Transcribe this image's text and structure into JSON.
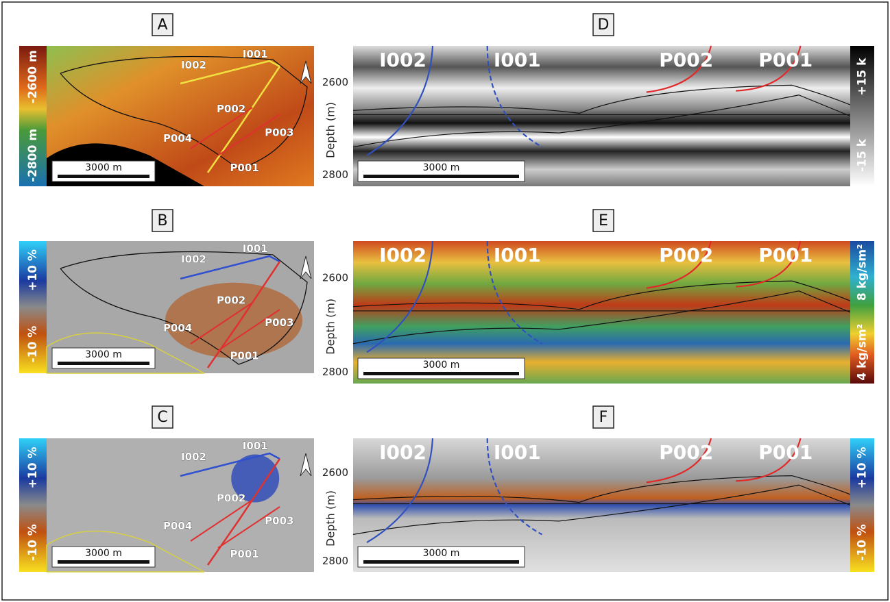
{
  "maps": [
    {
      "label": "A",
      "colorbar": {
        "top": "-2600 m",
        "bottom": "-2800 m"
      },
      "scale_bar": "3000 m",
      "wells": [
        "I001",
        "I002",
        "P002",
        "P004",
        "P003",
        "P001"
      ]
    },
    {
      "label": "B",
      "colorbar": {
        "top": "+10 %",
        "bottom": "-10 %"
      },
      "scale_bar": "3000 m",
      "wells": [
        "I001",
        "I002",
        "P002",
        "P004",
        "P003",
        "P001"
      ]
    },
    {
      "label": "C",
      "colorbar": {
        "top": "+10 %",
        "bottom": "-10 %"
      },
      "scale_bar": "3000 m",
      "wells": [
        "I001",
        "I002",
        "P002",
        "P004",
        "P003",
        "P001"
      ]
    }
  ],
  "sections": [
    {
      "label": "D",
      "axis_label": "Depth (m)",
      "ticks": [
        2600,
        2800
      ],
      "colorbar": {
        "top": "+15 k",
        "bottom": "-15 k"
      },
      "scale_bar": "3000 m",
      "wells": [
        "I002",
        "I001",
        "P002",
        "P001"
      ]
    },
    {
      "label": "E",
      "axis_label": "Depth (m)",
      "ticks": [
        2600,
        2800
      ],
      "colorbar": {
        "top": "8 kg/sm²",
        "bottom": "4 kg/sm²"
      },
      "scale_bar": "3000 m",
      "wells": [
        "I002",
        "I001",
        "P002",
        "P001"
      ]
    },
    {
      "label": "F",
      "axis_label": "Depth (m)",
      "ticks": [
        2600,
        2800
      ],
      "colorbar": {
        "top": "+10 %",
        "bottom": "-10 %"
      },
      "scale_bar": "3000 m",
      "wells": [
        "I002",
        "I001",
        "P002",
        "P001"
      ]
    }
  ]
}
